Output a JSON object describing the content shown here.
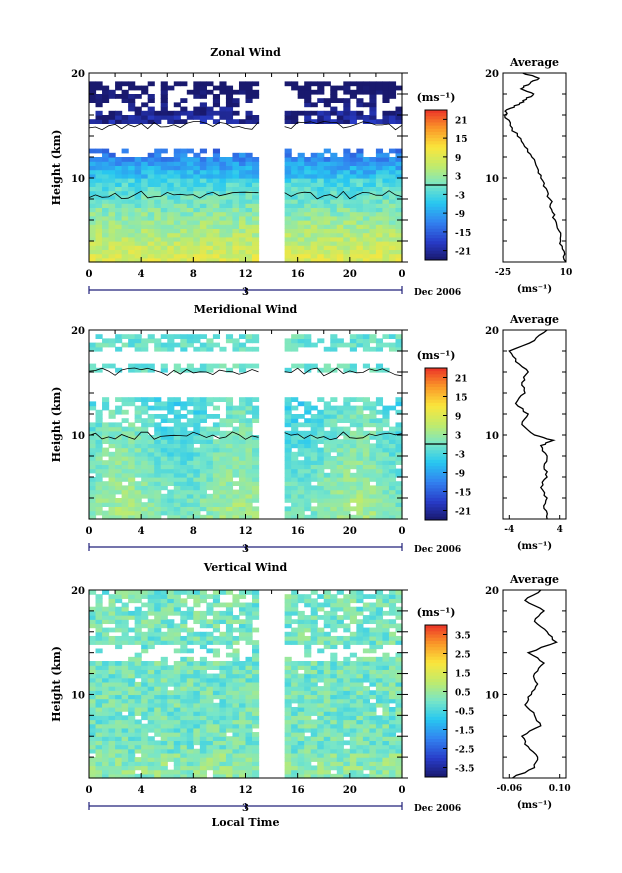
{
  "chart_data": [
    {
      "type": "heatmap",
      "title": "Zonal Wind",
      "ylabel": "Height (km)",
      "yticks": [
        "20",
        "10"
      ],
      "ylim": [
        2,
        20
      ],
      "xticks": [
        "0",
        "4",
        "8",
        "12",
        "16",
        "20",
        "0"
      ],
      "xlim": [
        0,
        24
      ],
      "date_marker": "3",
      "date_label": "Dec 2006",
      "colorbar_unit": "(ms⁻¹)",
      "colorbar_ticks": [
        "21",
        "15",
        "9",
        "3",
        "-3",
        "-9",
        "-15",
        "-21"
      ],
      "colorbar_range": [
        -24,
        24
      ],
      "data_gap_hours": [
        13,
        15
      ],
      "profile": {
        "title": "Average",
        "xticks": [
          "-25",
          "10"
        ],
        "xlim": [
          -25,
          10
        ],
        "xlabel": "(ms⁻¹)",
        "yticks": [
          "20",
          "10"
        ],
        "heights": [
          2,
          3,
          4,
          5,
          6,
          7,
          8,
          9,
          10,
          11,
          12,
          13,
          14,
          15,
          16,
          16.5,
          17,
          17.5,
          18,
          18.5,
          19,
          19.5,
          20
        ],
        "values": [
          10,
          9,
          7,
          6,
          4,
          2,
          1,
          -1,
          -4,
          -6,
          -9,
          -13,
          -17,
          -21,
          -24,
          -23,
          -16,
          -12,
          -8,
          -15,
          -10,
          -5,
          -14
        ]
      }
    },
    {
      "type": "heatmap",
      "title": "Meridional Wind",
      "ylabel": "Height (km)",
      "yticks": [
        "20",
        "10"
      ],
      "ylim": [
        2,
        20
      ],
      "xticks": [
        "0",
        "4",
        "8",
        "12",
        "16",
        "20",
        "0"
      ],
      "xlim": [
        0,
        24
      ],
      "date_marker": "3",
      "date_label": "Dec 2006",
      "colorbar_unit": "(ms⁻¹)",
      "colorbar_ticks": [
        "21",
        "15",
        "9",
        "3",
        "-3",
        "-9",
        "-15",
        "-21"
      ],
      "colorbar_range": [
        -24,
        24
      ],
      "data_gap_hours": [
        13,
        15
      ],
      "profile": {
        "title": "Average",
        "xticks": [
          "-4",
          "4"
        ],
        "xlim": [
          -5,
          5
        ],
        "xlabel": "(ms⁻¹)",
        "yticks": [
          "20",
          "10"
        ],
        "heights": [
          2,
          3,
          4,
          5,
          6,
          7,
          8,
          9,
          9.5,
          10,
          11,
          12,
          13,
          14,
          15,
          16,
          17,
          18,
          19,
          20
        ],
        "values": [
          2,
          1.5,
          2,
          1,
          2,
          1.5,
          2,
          1,
          3,
          0,
          -2,
          -1,
          -3,
          -1.5,
          -2,
          -1,
          -3,
          -4,
          0,
          2
        ]
      }
    },
    {
      "type": "heatmap",
      "title": "Vertical Wind",
      "ylabel": "Height (km)",
      "yticks": [
        "20",
        "10"
      ],
      "ylim": [
        2,
        20
      ],
      "xticks": [
        "0",
        "4",
        "8",
        "12",
        "16",
        "20",
        "0"
      ],
      "xlim": [
        0,
        24
      ],
      "xlabel": "Local Time",
      "date_marker": "3",
      "date_label": "Dec 2006",
      "colorbar_unit": "(ms⁻¹)",
      "colorbar_ticks": [
        "3.5",
        "2.5",
        "1.5",
        "0.5",
        "-0.5",
        "-1.5",
        "-2.5",
        "-3.5"
      ],
      "colorbar_range": [
        -4,
        4
      ],
      "data_gap_hours": [
        13,
        15
      ],
      "profile": {
        "title": "Average",
        "xticks": [
          "-0.06",
          "0.10"
        ],
        "xlim": [
          -0.08,
          0.12
        ],
        "xlabel": "(ms⁻¹)",
        "yticks": [
          "20",
          "10"
        ],
        "heights": [
          2,
          3,
          4,
          5,
          6,
          7,
          8,
          9,
          10,
          11,
          12,
          13,
          14,
          15,
          16,
          17,
          18,
          19,
          20
        ],
        "values": [
          -0.05,
          0.02,
          0.03,
          0.0,
          -0.02,
          0.04,
          0.02,
          -0.01,
          0.01,
          0.03,
          0.02,
          0.05,
          0.0,
          0.09,
          0.06,
          0.02,
          0.05,
          -0.01,
          0.04
        ]
      }
    }
  ]
}
